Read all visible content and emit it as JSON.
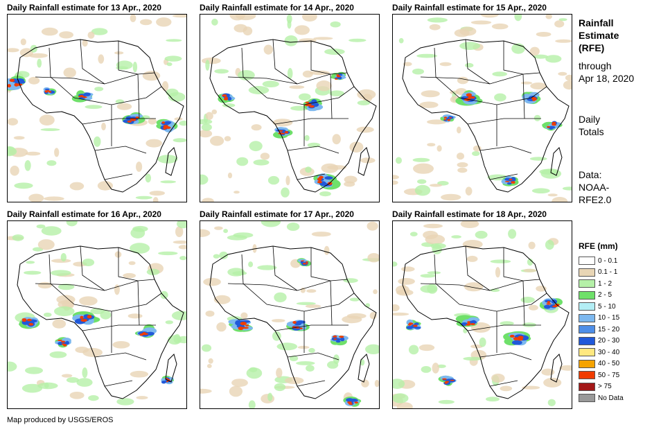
{
  "panels": [
    {
      "title": "Daily Rainfall estimate for 13 Apr., 2020"
    },
    {
      "title": "Daily Rainfall estimate for 14 Apr., 2020"
    },
    {
      "title": "Daily Rainfall estimate for 15 Apr., 2020"
    },
    {
      "title": "Daily Rainfall estimate for 16 Apr., 2020"
    },
    {
      "title": "Daily Rainfall estimate for 17 Apr., 2020"
    },
    {
      "title": "Daily Rainfall estimate for 18 Apr., 2020"
    }
  ],
  "side": {
    "heading1": "Rainfall",
    "heading2": "Estimate",
    "heading3": "(RFE)",
    "through1": "through",
    "through2": "Apr 18, 2020",
    "totals1": "Daily",
    "totals2": "Totals",
    "source1": "Data:",
    "source2": "NOAA-",
    "source3": "RFE2.0"
  },
  "legend": {
    "title": "RFE (mm)",
    "items": [
      {
        "label": "0 - 0.1",
        "color": "#ffffff"
      },
      {
        "label": "0.1 - 1",
        "color": "#e8d5b5"
      },
      {
        "label": "1 - 2",
        "color": "#b5f0a8"
      },
      {
        "label": "2 - 5",
        "color": "#6fe06a"
      },
      {
        "label": "5 - 10",
        "color": "#b3eef5"
      },
      {
        "label": "10 - 15",
        "color": "#7db8ef"
      },
      {
        "label": "15 - 20",
        "color": "#4f8fe8"
      },
      {
        "label": "20 - 30",
        "color": "#2159d9"
      },
      {
        "label": "30 - 40",
        "color": "#ffe880"
      },
      {
        "label": "40 - 50",
        "color": "#f5a300"
      },
      {
        "label": "50 - 75",
        "color": "#f03c00"
      },
      {
        "label": "> 75",
        "color": "#a31818"
      },
      {
        "label": "No Data",
        "color": "#999999"
      }
    ]
  },
  "footer": "Map produced by USGS/EROS"
}
